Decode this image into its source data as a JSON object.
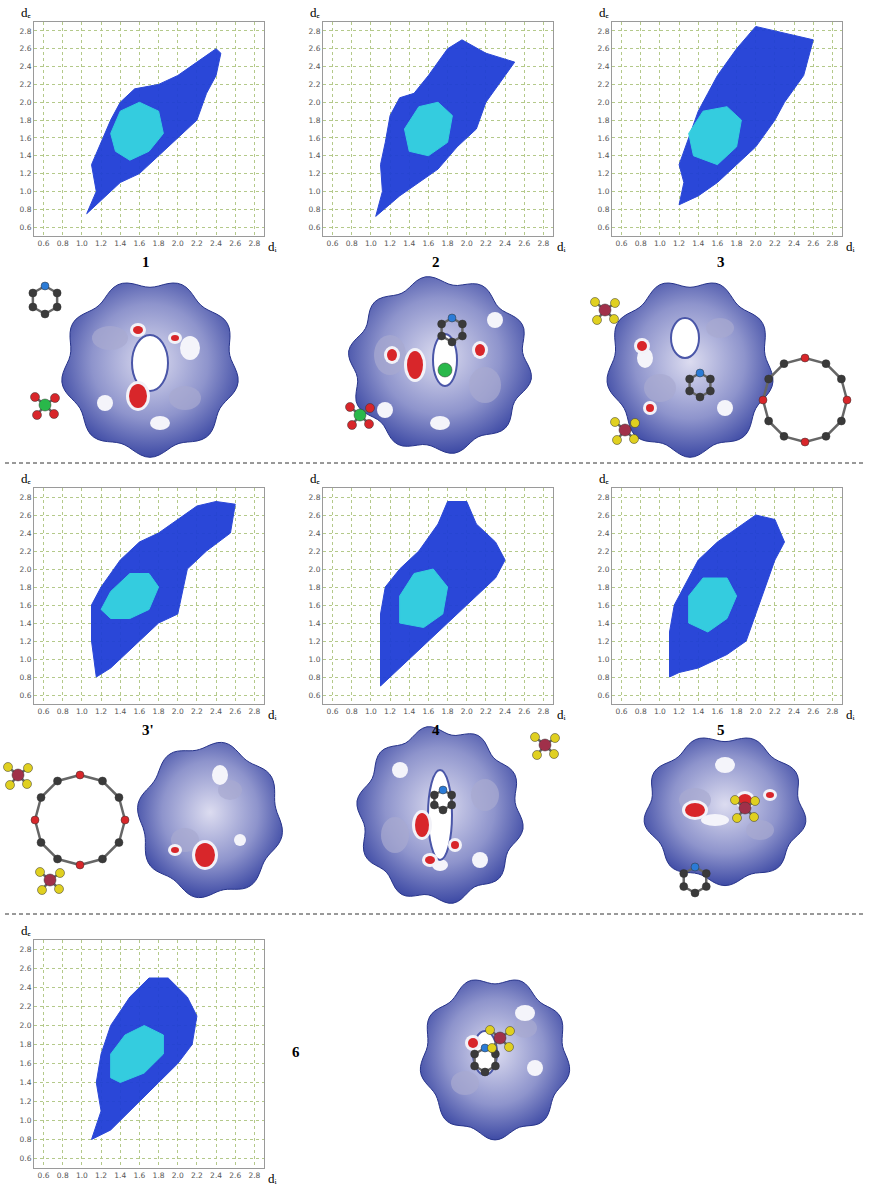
{
  "chart_data": [
    {
      "type": "area",
      "title": "1",
      "x_label": "dᵢ",
      "y_label": "dₑ",
      "xlim": [
        0.5,
        2.9
      ],
      "ylim": [
        0.5,
        2.9
      ],
      "grid": true,
      "xticks": [
        0.6,
        0.8,
        {
          "value": 1,
          "label": "1.0"
        },
        1.2,
        1.4,
        1.6,
        1.8,
        {
          "value": 2,
          "label": "2.0"
        },
        2.2,
        2.4,
        2.6,
        2.8
      ],
      "yticks": [
        0.6,
        0.8,
        {
          "value": 1,
          "label": "1.0"
        },
        1.2,
        1.4,
        1.6,
        1.8,
        {
          "value": 2,
          "label": "2.0"
        },
        2.2,
        2.4,
        2.6,
        2.8
      ],
      "series": [
        {
          "color": "#1f3ed6",
          "x": [
            1.05,
            1.15,
            1.1,
            1.2,
            1.3,
            1.4,
            1.55,
            1.8,
            2.0,
            2.2,
            2.4,
            2.45,
            2.4,
            2.3,
            2.2,
            2.0,
            1.8,
            1.6,
            1.4,
            1.2,
            1.05
          ],
          "y": [
            0.75,
            1.0,
            1.3,
            1.55,
            1.8,
            2.0,
            2.15,
            2.2,
            2.3,
            2.45,
            2.6,
            2.55,
            2.3,
            2.1,
            1.8,
            1.6,
            1.4,
            1.2,
            1.1,
            0.9,
            0.75
          ]
        },
        {
          "color": "#35d4e0",
          "x": [
            1.35,
            1.3,
            1.4,
            1.6,
            1.8,
            1.85,
            1.7,
            1.5,
            1.35
          ],
          "y": [
            1.45,
            1.65,
            1.9,
            2.0,
            1.9,
            1.65,
            1.45,
            1.35,
            1.45
          ]
        }
      ]
    },
    {
      "type": "area",
      "title": "2",
      "x_label": "dᵢ",
      "y_label": "dₑ",
      "xlim": [
        0.5,
        2.9
      ],
      "ylim": [
        0.5,
        2.9
      ],
      "grid": true,
      "xticks": [
        0.6,
        0.8,
        {
          "value": 1,
          "label": "1.0"
        },
        1.2,
        1.4,
        1.6,
        1.8,
        {
          "value": 2,
          "label": "2.0"
        },
        2.2,
        2.4,
        2.6,
        2.8
      ],
      "yticks": [
        0.6,
        0.8,
        {
          "value": 1,
          "label": "1.0"
        },
        1.2,
        1.4,
        1.6,
        1.8,
        {
          "value": 2,
          "label": "2.0"
        },
        2.2,
        2.4,
        2.6,
        2.8
      ],
      "series": [
        {
          "color": "#1f3ed6",
          "x": [
            1.05,
            1.12,
            1.1,
            1.15,
            1.2,
            1.3,
            1.45,
            1.6,
            1.8,
            1.95,
            2.2,
            2.5,
            2.4,
            2.2,
            2.1,
            1.9,
            1.7,
            1.5,
            1.3,
            1.05
          ],
          "y": [
            0.72,
            1.0,
            1.3,
            1.55,
            1.85,
            2.05,
            2.1,
            2.3,
            2.6,
            2.7,
            2.55,
            2.45,
            2.3,
            2.0,
            1.7,
            1.5,
            1.25,
            1.1,
            0.95,
            0.72
          ]
        },
        {
          "color": "#35d4e0",
          "x": [
            1.4,
            1.35,
            1.5,
            1.7,
            1.85,
            1.8,
            1.6,
            1.4
          ],
          "y": [
            1.45,
            1.7,
            1.95,
            2.0,
            1.85,
            1.55,
            1.4,
            1.45
          ]
        }
      ]
    },
    {
      "type": "area",
      "title": "3",
      "x_label": "dᵢ",
      "y_label": "dₑ",
      "xlim": [
        0.5,
        2.9
      ],
      "ylim": [
        0.5,
        2.9
      ],
      "grid": true,
      "xticks": [
        0.6,
        0.8,
        {
          "value": 1,
          "label": "1.0"
        },
        1.2,
        1.4,
        1.6,
        1.8,
        {
          "value": 2,
          "label": "2.0"
        },
        2.2,
        2.4,
        2.6,
        2.8
      ],
      "yticks": [
        0.6,
        0.8,
        {
          "value": 1,
          "label": "1.0"
        },
        1.2,
        1.4,
        1.6,
        1.8,
        {
          "value": 2,
          "label": "2.0"
        },
        2.2,
        2.4,
        2.6,
        2.8
      ],
      "series": [
        {
          "color": "#1f3ed6",
          "x": [
            1.2,
            1.25,
            1.2,
            1.3,
            1.4,
            1.5,
            1.6,
            1.8,
            2.0,
            2.2,
            2.6,
            2.5,
            2.3,
            2.2,
            2.0,
            1.8,
            1.6,
            1.4,
            1.2
          ],
          "y": [
            0.85,
            1.1,
            1.3,
            1.6,
            1.9,
            2.1,
            2.3,
            2.6,
            2.85,
            2.8,
            2.7,
            2.3,
            2.0,
            1.8,
            1.5,
            1.3,
            1.1,
            0.95,
            0.85
          ]
        },
        {
          "color": "#35d4e0",
          "x": [
            1.35,
            1.3,
            1.45,
            1.7,
            1.85,
            1.8,
            1.6,
            1.35
          ],
          "y": [
            1.4,
            1.65,
            1.9,
            1.95,
            1.8,
            1.5,
            1.3,
            1.4
          ]
        }
      ]
    },
    {
      "type": "area",
      "title": "3'",
      "x_label": "dᵢ",
      "y_label": "dₑ",
      "xlim": [
        0.5,
        2.9
      ],
      "ylim": [
        0.5,
        2.9
      ],
      "grid": true,
      "xticks": [
        0.6,
        0.8,
        {
          "value": 1,
          "label": "1.0"
        },
        1.2,
        1.4,
        1.6,
        1.8,
        {
          "value": 2,
          "label": "2.0"
        },
        2.2,
        2.4,
        2.6,
        2.8
      ],
      "yticks": [
        0.6,
        0.8,
        {
          "value": 1,
          "label": "1.0"
        },
        1.2,
        1.4,
        1.6,
        1.8,
        {
          "value": 2,
          "label": "2.0"
        },
        2.2,
        2.4,
        2.6,
        2.8
      ],
      "series": [
        {
          "color": "#1f3ed6",
          "x": [
            1.15,
            1.1,
            1.1,
            1.2,
            1.4,
            1.6,
            1.8,
            2.0,
            2.2,
            2.4,
            2.6,
            2.55,
            2.3,
            2.1,
            2.0,
            1.8,
            1.6,
            1.4,
            1.3,
            1.15
          ],
          "y": [
            0.8,
            1.2,
            1.6,
            1.8,
            2.1,
            2.3,
            2.4,
            2.55,
            2.7,
            2.75,
            2.72,
            2.4,
            2.2,
            2.0,
            1.5,
            1.4,
            1.2,
            1.0,
            0.9,
            0.8
          ]
        },
        {
          "color": "#35d4e0",
          "x": [
            1.2,
            1.3,
            1.5,
            1.7,
            1.8,
            1.7,
            1.5,
            1.3,
            1.2
          ],
          "y": [
            1.55,
            1.75,
            1.95,
            1.95,
            1.8,
            1.55,
            1.45,
            1.45,
            1.55
          ]
        }
      ]
    },
    {
      "type": "area",
      "title": "4",
      "x_label": "dᵢ",
      "y_label": "dₑ",
      "xlim": [
        0.5,
        2.9
      ],
      "ylim": [
        0.5,
        2.9
      ],
      "grid": true,
      "xticks": [
        0.6,
        0.8,
        {
          "value": 1,
          "label": "1.0"
        },
        1.2,
        1.4,
        1.6,
        1.8,
        {
          "value": 2,
          "label": "2.0"
        },
        2.2,
        2.4,
        2.6,
        2.8
      ],
      "yticks": [
        0.6,
        0.8,
        {
          "value": 1,
          "label": "1.0"
        },
        1.2,
        1.4,
        1.6,
        1.8,
        {
          "value": 2,
          "label": "2.0"
        },
        2.2,
        2.4,
        2.6,
        2.8
      ],
      "series": [
        {
          "color": "#1f3ed6",
          "x": [
            1.1,
            1.1,
            1.1,
            1.15,
            1.3,
            1.5,
            1.7,
            1.8,
            2.0,
            2.1,
            2.3,
            2.4,
            2.3,
            2.1,
            1.9,
            1.7,
            1.5,
            1.3,
            1.1
          ],
          "y": [
            0.7,
            1.2,
            1.5,
            1.8,
            2.0,
            2.2,
            2.5,
            2.75,
            2.75,
            2.5,
            2.3,
            2.1,
            1.9,
            1.7,
            1.5,
            1.3,
            1.1,
            0.9,
            0.7
          ]
        },
        {
          "color": "#35d4e0",
          "x": [
            1.3,
            1.3,
            1.45,
            1.65,
            1.8,
            1.75,
            1.55,
            1.3
          ],
          "y": [
            1.4,
            1.7,
            1.95,
            2.0,
            1.8,
            1.5,
            1.35,
            1.4
          ]
        }
      ]
    },
    {
      "type": "area",
      "title": "5",
      "x_label": "dᵢ",
      "y_label": "dₑ",
      "xlim": [
        0.5,
        2.9
      ],
      "ylim": [
        0.5,
        2.9
      ],
      "grid": true,
      "xticks": [
        0.6,
        0.8,
        {
          "value": 1,
          "label": "1.0"
        },
        1.2,
        1.4,
        1.6,
        1.8,
        {
          "value": 2,
          "label": "2.0"
        },
        2.2,
        2.4,
        2.6,
        2.8
      ],
      "yticks": [
        0.6,
        0.8,
        {
          "value": 1,
          "label": "1.0"
        },
        1.2,
        1.4,
        1.6,
        1.8,
        {
          "value": 2,
          "label": "2.0"
        },
        2.2,
        2.4,
        2.6,
        2.8
      ],
      "series": [
        {
          "color": "#1f3ed6",
          "x": [
            1.1,
            1.1,
            1.1,
            1.15,
            1.3,
            1.4,
            1.6,
            1.8,
            2.0,
            2.2,
            2.3,
            2.2,
            2.1,
            2.0,
            1.9,
            1.7,
            1.4,
            1.2,
            1.1
          ],
          "y": [
            0.8,
            1.1,
            1.3,
            1.6,
            1.9,
            2.1,
            2.3,
            2.45,
            2.6,
            2.55,
            2.3,
            2.1,
            1.8,
            1.5,
            1.2,
            1.05,
            0.9,
            0.85,
            0.8
          ]
        },
        {
          "color": "#35d4e0",
          "x": [
            1.3,
            1.3,
            1.45,
            1.7,
            1.8,
            1.7,
            1.5,
            1.3
          ],
          "y": [
            1.4,
            1.7,
            1.9,
            1.9,
            1.7,
            1.45,
            1.3,
            1.4
          ]
        }
      ]
    },
    {
      "type": "area",
      "title": "6",
      "x_label": "dᵢ",
      "y_label": "dₑ",
      "xlim": [
        0.5,
        2.9
      ],
      "ylim": [
        0.5,
        2.9
      ],
      "grid": true,
      "xticks": [
        0.6,
        0.8,
        {
          "value": 1,
          "label": "1.0"
        },
        1.2,
        1.4,
        1.6,
        1.8,
        {
          "value": 2,
          "label": "2.0"
        },
        2.2,
        2.4,
        2.6,
        2.8
      ],
      "yticks": [
        0.6,
        0.8,
        {
          "value": 1,
          "label": "1.0"
        },
        1.2,
        1.4,
        1.6,
        1.8,
        {
          "value": 2,
          "label": "2.0"
        },
        2.2,
        2.4,
        2.6,
        2.8
      ],
      "series": [
        {
          "color": "#1f3ed6",
          "x": [
            1.1,
            1.2,
            1.15,
            1.2,
            1.3,
            1.5,
            1.7,
            1.9,
            2.1,
            2.2,
            2.15,
            2.0,
            1.8,
            1.6,
            1.4,
            1.3,
            1.1
          ],
          "y": [
            0.8,
            1.1,
            1.4,
            1.7,
            2.0,
            2.3,
            2.5,
            2.5,
            2.3,
            2.1,
            1.8,
            1.6,
            1.4,
            1.2,
            1.0,
            0.9,
            0.8
          ]
        },
        {
          "color": "#35d4e0",
          "x": [
            1.3,
            1.3,
            1.45,
            1.65,
            1.85,
            1.85,
            1.65,
            1.4,
            1.3
          ],
          "y": [
            1.45,
            1.7,
            1.9,
            2.0,
            1.9,
            1.7,
            1.5,
            1.4,
            1.45
          ]
        }
      ]
    }
  ]
}
